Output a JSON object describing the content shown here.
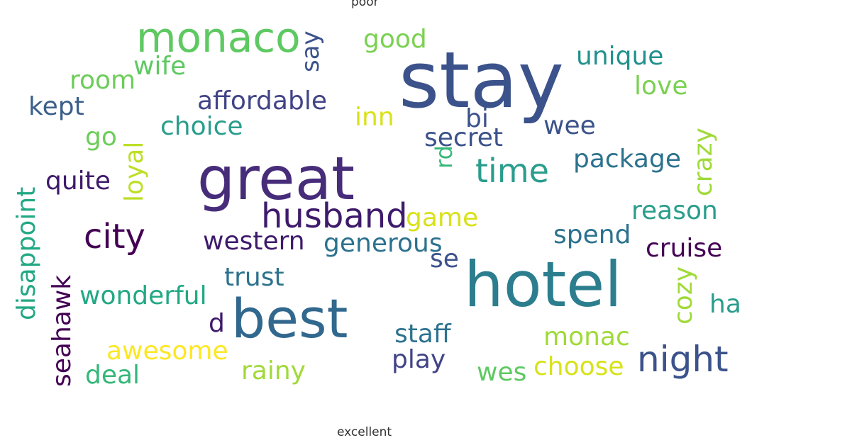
{
  "labels": {
    "top": "poor",
    "bottom": "excellent"
  },
  "words": [
    {
      "text": "stay",
      "color": "#3b528b"
    },
    {
      "text": "great",
      "color": "#472c7a"
    },
    {
      "text": "hotel",
      "color": "#2c7e8e"
    },
    {
      "text": "best",
      "color": "#31688e"
    },
    {
      "text": "monaco",
      "color": "#5ec962"
    },
    {
      "text": "husband",
      "color": "#3e1a6b"
    },
    {
      "text": "city",
      "color": "#440154"
    },
    {
      "text": "night",
      "color": "#3b528b"
    },
    {
      "text": "time",
      "color": "#2a9d8c"
    },
    {
      "text": "good",
      "color": "#7ad151"
    },
    {
      "text": "wife",
      "color": "#5ec962"
    },
    {
      "text": "say",
      "color": "#3b528b"
    },
    {
      "text": "unique",
      "color": "#21918c"
    },
    {
      "text": "room",
      "color": "#6dcd59"
    },
    {
      "text": "love",
      "color": "#7ad151"
    },
    {
      "text": "kept",
      "color": "#3b5f8a"
    },
    {
      "text": "affordable",
      "color": "#414487"
    },
    {
      "text": "inn",
      "color": "#d8e219"
    },
    {
      "text": "bi",
      "color": "#3b528b"
    },
    {
      "text": "wee",
      "color": "#3b528b"
    },
    {
      "text": "choice",
      "color": "#2a9d8c"
    },
    {
      "text": "go",
      "color": "#6dcd59"
    },
    {
      "text": "secret",
      "color": "#3b528b"
    },
    {
      "text": "crazy",
      "color": "#a0da39"
    },
    {
      "text": "package",
      "color": "#2c728e"
    },
    {
      "text": "rd",
      "color": "#35b779"
    },
    {
      "text": "quite",
      "color": "#3e1a6b"
    },
    {
      "text": "loyal",
      "color": "#bddf26"
    },
    {
      "text": "disappoint",
      "color": "#22a884"
    },
    {
      "text": "game",
      "color": "#d8e219"
    },
    {
      "text": "reason",
      "color": "#2a9d8c"
    },
    {
      "text": "spend",
      "color": "#2c728e"
    },
    {
      "text": "western",
      "color": "#3e1a6b"
    },
    {
      "text": "generous",
      "color": "#2c728e"
    },
    {
      "text": "cruise",
      "color": "#440154"
    },
    {
      "text": "se",
      "color": "#3b528b"
    },
    {
      "text": "trust",
      "color": "#2c728e"
    },
    {
      "text": "cozy",
      "color": "#a0da39"
    },
    {
      "text": "wonderful",
      "color": "#22a884"
    },
    {
      "text": "ha",
      "color": "#2a9d8c"
    },
    {
      "text": "seahawk",
      "color": "#440154"
    },
    {
      "text": "d",
      "color": "#3e1a6b"
    },
    {
      "text": "staff",
      "color": "#2c728e"
    },
    {
      "text": "monac",
      "color": "#a0da39"
    },
    {
      "text": "awesome",
      "color": "#fde725"
    },
    {
      "text": "play",
      "color": "#414487"
    },
    {
      "text": "rainy",
      "color": "#a0da39"
    },
    {
      "text": "deal",
      "color": "#35b779"
    },
    {
      "text": "wes",
      "color": "#5ec962"
    },
    {
      "text": "choose",
      "color": "#d8e219"
    }
  ]
}
